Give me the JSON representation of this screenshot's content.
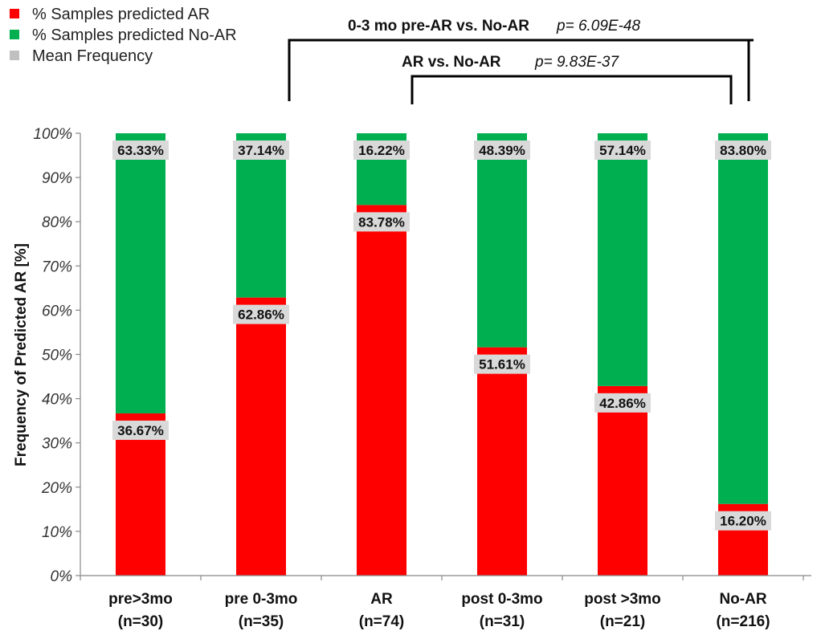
{
  "chart_data": {
    "type": "bar",
    "stacked": true,
    "ylabel": "Frequency of Predicted  AR [%]",
    "ylim": [
      0,
      100
    ],
    "y_ticks": [
      "0%",
      "10%",
      "20%",
      "30%",
      "40%",
      "50%",
      "60%",
      "70%",
      "80%",
      "90%",
      "100%"
    ],
    "categories": [
      {
        "line1": "pre>3mo",
        "line2": "(n=30)"
      },
      {
        "line1": "pre 0-3mo",
        "line2": "(n=35)"
      },
      {
        "line1": "AR",
        "line2": "(n=74)"
      },
      {
        "line1": "post 0-3mo",
        "line2": "(n=31)"
      },
      {
        "line1": "post >3mo",
        "line2": "(n=21)"
      },
      {
        "line1": "No-AR",
        "line2": "(n=216)"
      }
    ],
    "series": [
      {
        "name": "% Samples predicted AR",
        "color": "#ff0000",
        "values": [
          36.67,
          62.86,
          83.78,
          51.61,
          42.86,
          16.2
        ],
        "labels": [
          "36.67%",
          "62.86%",
          "83.78%",
          "51.61%",
          "42.86%",
          "16.20%"
        ]
      },
      {
        "name": "% Samples predicted No-AR",
        "color": "#00b050",
        "values": [
          63.33,
          37.14,
          16.22,
          48.39,
          57.14,
          83.8
        ],
        "labels": [
          "63.33%",
          "37.14%",
          "16.22%",
          "48.39%",
          "57.14%",
          "83.80%"
        ]
      }
    ],
    "legend": [
      {
        "name": "% Samples predicted AR",
        "color": "#ff0000"
      },
      {
        "name": "% Samples predicted No-AR",
        "color": "#00b050"
      },
      {
        "name": "Mean Frequency",
        "color": "#c0c0c0"
      }
    ],
    "legend_position": "top-left",
    "grid": false,
    "comparisons": [
      {
        "label": "0-3 mo pre-AR vs. No-AR",
        "p": "p= 6.09E-48",
        "from": 1,
        "to": 5
      },
      {
        "label": "AR vs. No-AR",
        "p": "p= 9.83E-37",
        "from": 2,
        "to": 5
      }
    ]
  }
}
